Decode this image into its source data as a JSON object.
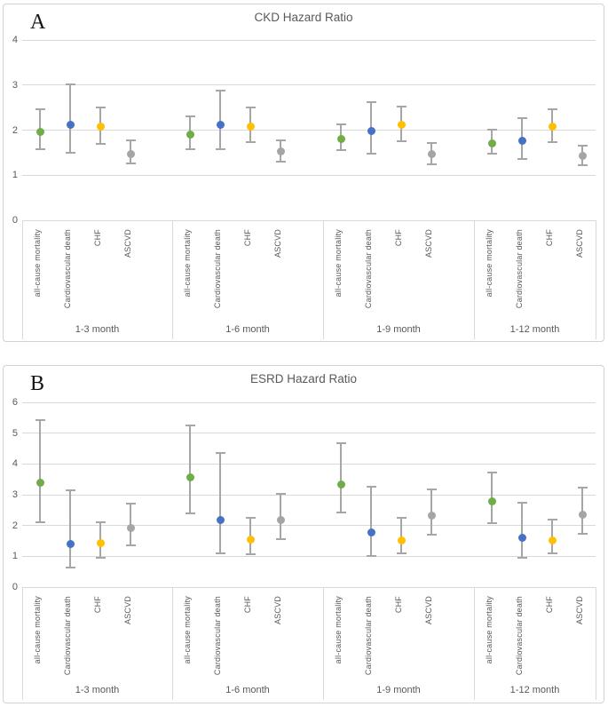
{
  "figure": {
    "panel_count": 2,
    "background": "#ffffff",
    "panel_border_color": "#cdd3d9"
  },
  "style": {
    "gridline_color": "#d9d9d9",
    "error_bar_color": "#a6a6a6",
    "text_color": "#595959",
    "series_colors": {
      "all-cause mortality": "#70ad47",
      "Cardiovascular death": "#4472c4",
      "CHF": "#ffc000",
      "ASCVD": "#a5a5a5"
    }
  },
  "chart_data": [
    {
      "type": "scatter",
      "subtype": "dot-with-error-bars",
      "panel_label": "A",
      "title": "CKD Hazard Ratio",
      "ylim": [
        0,
        4
      ],
      "yticks": [
        0,
        1,
        2,
        3,
        4
      ],
      "grid": true,
      "legend": "none",
      "categories": [
        "all-cause mortality",
        "Cardiovascular death",
        "CHF",
        "ASCVD"
      ],
      "groups": [
        {
          "label": "1-3 month",
          "points": [
            {
              "category": "all-cause mortality",
              "hr": 1.97,
              "lo": 1.57,
              "hi": 2.46
            },
            {
              "category": "Cardiovascular death",
              "hr": 2.11,
              "lo": 1.49,
              "hi": 3.02
            },
            {
              "category": "CHF",
              "hr": 2.07,
              "lo": 1.7,
              "hi": 2.51
            },
            {
              "category": "ASCVD",
              "hr": 1.47,
              "lo": 1.26,
              "hi": 1.77
            }
          ]
        },
        {
          "label": "1-6 month",
          "points": [
            {
              "category": "all-cause mortality",
              "hr": 1.9,
              "lo": 1.58,
              "hi": 2.31
            },
            {
              "category": "Cardiovascular death",
              "hr": 2.12,
              "lo": 1.57,
              "hi": 2.88
            },
            {
              "category": "CHF",
              "hr": 2.08,
              "lo": 1.73,
              "hi": 2.5
            },
            {
              "category": "ASCVD",
              "hr": 1.52,
              "lo": 1.3,
              "hi": 1.78
            }
          ]
        },
        {
          "label": "1-9 month",
          "points": [
            {
              "category": "all-cause mortality",
              "hr": 1.81,
              "lo": 1.55,
              "hi": 2.12
            },
            {
              "category": "Cardiovascular death",
              "hr": 1.98,
              "lo": 1.48,
              "hi": 2.62
            },
            {
              "category": "CHF",
              "hr": 2.11,
              "lo": 1.75,
              "hi": 2.53
            },
            {
              "category": "ASCVD",
              "hr": 1.46,
              "lo": 1.25,
              "hi": 1.72
            }
          ]
        },
        {
          "label": "1-12 month",
          "points": [
            {
              "category": "all-cause mortality",
              "hr": 1.71,
              "lo": 1.47,
              "hi": 2.01
            },
            {
              "category": "Cardiovascular death",
              "hr": 1.76,
              "lo": 1.36,
              "hi": 2.26
            },
            {
              "category": "CHF",
              "hr": 2.07,
              "lo": 1.73,
              "hi": 2.46
            },
            {
              "category": "ASCVD",
              "hr": 1.43,
              "lo": 1.23,
              "hi": 1.65
            }
          ]
        }
      ]
    },
    {
      "type": "scatter",
      "subtype": "dot-with-error-bars",
      "panel_label": "B",
      "title": "ESRD Hazard Ratio",
      "ylim": [
        0,
        6
      ],
      "yticks": [
        0,
        1,
        2,
        3,
        4,
        5,
        6
      ],
      "grid": true,
      "legend": "none",
      "categories": [
        "all-cause mortality",
        "Cardiovascular death",
        "CHF",
        "ASCVD"
      ],
      "groups": [
        {
          "label": "1-3 month",
          "points": [
            {
              "category": "all-cause mortality",
              "hr": 3.4,
              "lo": 2.12,
              "hi": 5.42
            },
            {
              "category": "Cardiovascular death",
              "hr": 1.4,
              "lo": 0.64,
              "hi": 3.13
            },
            {
              "category": "CHF",
              "hr": 1.42,
              "lo": 0.95,
              "hi": 2.11
            },
            {
              "category": "ASCVD",
              "hr": 1.93,
              "lo": 1.36,
              "hi": 2.72
            }
          ]
        },
        {
          "label": "1-6 month",
          "points": [
            {
              "category": "all-cause mortality",
              "hr": 3.55,
              "lo": 2.4,
              "hi": 5.26
            },
            {
              "category": "Cardiovascular death",
              "hr": 2.18,
              "lo": 1.1,
              "hi": 4.36
            },
            {
              "category": "CHF",
              "hr": 1.53,
              "lo": 1.06,
              "hi": 2.26
            },
            {
              "category": "ASCVD",
              "hr": 2.17,
              "lo": 1.55,
              "hi": 3.04
            }
          ]
        },
        {
          "label": "1-9 month",
          "points": [
            {
              "category": "all-cause mortality",
              "hr": 3.33,
              "lo": 2.41,
              "hi": 4.66
            },
            {
              "category": "Cardiovascular death",
              "hr": 1.78,
              "lo": 1.0,
              "hi": 3.26
            },
            {
              "category": "CHF",
              "hr": 1.52,
              "lo": 1.09,
              "hi": 2.25
            },
            {
              "category": "ASCVD",
              "hr": 2.31,
              "lo": 1.69,
              "hi": 3.18
            }
          ]
        },
        {
          "label": "1-12 month",
          "points": [
            {
              "category": "all-cause mortality",
              "hr": 2.77,
              "lo": 2.07,
              "hi": 3.73
            },
            {
              "category": "Cardiovascular death",
              "hr": 1.59,
              "lo": 0.94,
              "hi": 2.74
            },
            {
              "category": "CHF",
              "hr": 1.52,
              "lo": 1.1,
              "hi": 2.19
            },
            {
              "category": "ASCVD",
              "hr": 2.34,
              "lo": 1.72,
              "hi": 3.23
            }
          ]
        }
      ]
    }
  ]
}
